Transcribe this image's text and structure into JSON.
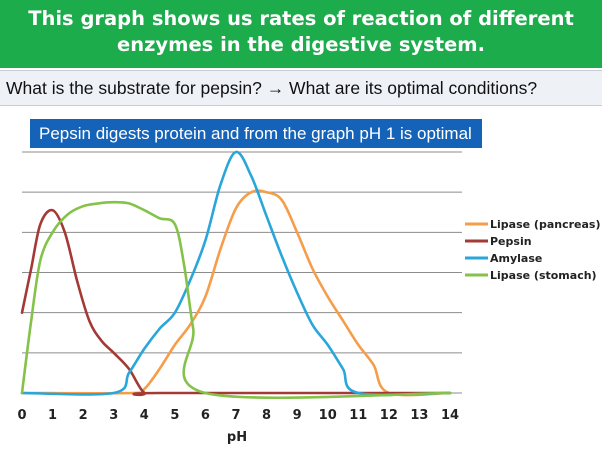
{
  "header": {
    "line1": "This graph shows us rates of reaction of different",
    "line2": "enzymes in the digestive system."
  },
  "question": "What is the substrate for pepsin? → What are its optimal conditions?",
  "answer": "Pepsin digests protein and from the graph pH 1 is optimal",
  "chart_data": {
    "type": "line",
    "title": "",
    "xlabel": "pH",
    "ylabel": "",
    "xlim": [
      0,
      14
    ],
    "ylim": [
      0,
      6
    ],
    "grid": true,
    "legend_position": "right",
    "xticks": [
      "0",
      "1",
      "2",
      "3",
      "4",
      "5",
      "6",
      "7",
      "8",
      "9",
      "10",
      "11",
      "12",
      "13",
      "14"
    ],
    "series": [
      {
        "name": "Lipase (pancreas)",
        "color": "#f59d4a",
        "x": [
          0,
          3.6,
          4,
          4.5,
          5,
          5.5,
          6,
          6.5,
          7,
          7.5,
          8,
          8.5,
          9,
          9.5,
          10,
          10.5,
          11,
          11.5,
          12,
          14
        ],
        "y": [
          0,
          0,
          0.1,
          0.6,
          1.2,
          1.7,
          2.4,
          3.6,
          4.6,
          5,
          5,
          4.8,
          4,
          3.1,
          2.4,
          1.8,
          1.2,
          0.7,
          0,
          0
        ]
      },
      {
        "name": "Pepsin",
        "color": "#a33a35",
        "x": [
          0,
          0.3,
          0.6,
          1,
          1.4,
          1.8,
          2.2,
          2.6,
          3,
          3.5,
          4,
          4.5,
          14
        ],
        "y": [
          2,
          3.1,
          4.2,
          4.55,
          4,
          2.8,
          1.8,
          1.3,
          1,
          0.6,
          0,
          0,
          0
        ]
      },
      {
        "name": "Amylase",
        "color": "#29a6da",
        "x": [
          0,
          3,
          3.5,
          4,
          4.5,
          5,
          5.5,
          6,
          6.5,
          7,
          7.5,
          8,
          8.5,
          9,
          9.5,
          10,
          10.5,
          11,
          14
        ],
        "y": [
          0,
          0,
          0.5,
          1.1,
          1.6,
          2,
          2.8,
          3.8,
          5.2,
          6,
          5.4,
          4.4,
          3.4,
          2.5,
          1.7,
          1.2,
          0.6,
          0,
          0
        ]
      },
      {
        "name": "Lipase (stomach)",
        "color": "#84c24a",
        "x": [
          0,
          0.3,
          0.6,
          1,
          1.5,
          2,
          2.5,
          3,
          3.5,
          4,
          4.5,
          5,
          5.3,
          5.6,
          6,
          14
        ],
        "y": [
          0,
          1.8,
          3.3,
          4,
          4.45,
          4.65,
          4.72,
          4.75,
          4.72,
          4.55,
          4.35,
          4.2,
          3.2,
          1.6,
          0,
          0
        ]
      }
    ]
  }
}
